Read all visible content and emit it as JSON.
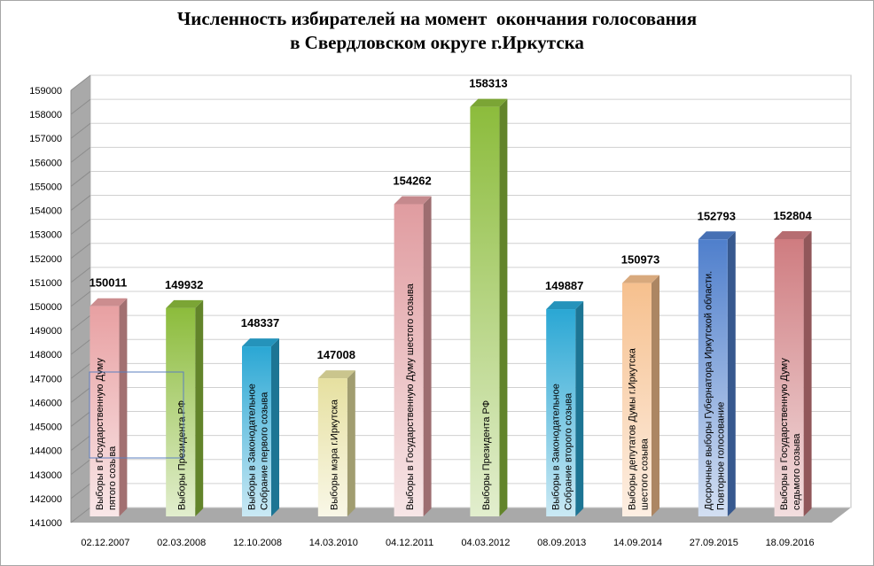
{
  "title_line1": "Численность избирателей на момент  окончания голосования",
  "title_line2": "в Свердловском округе г.Иркутска",
  "chart_data": {
    "type": "bar",
    "title": "Численность избирателей на момент  окончания голосования в Свердловском округе г.Иркутска",
    "xlabel": "",
    "ylabel": "",
    "ylim": [
      141000,
      159000
    ],
    "ytick_step": 1000,
    "grid": true,
    "categories": [
      "02.12.2007",
      "02.03.2008",
      "12.10.2008",
      "14.03.2010",
      "04.12.2011",
      "04.03.2012",
      "08.09.2013",
      "14.09.2014",
      "27.09.2015",
      "18.09.2016"
    ],
    "values": [
      150011,
      149932,
      148337,
      147008,
      154262,
      158313,
      149887,
      150973,
      152793,
      152804
    ],
    "bar_labels": [
      [
        "Выборы в Государственную Думу",
        "пятого созыва"
      ],
      [
        "Выборы Президента РФ"
      ],
      [
        "Выборы в Законодательное",
        "Собрание первого созыва"
      ],
      [
        "Выборы мэра г.Иркутска"
      ],
      [
        "Выборы в Государственную Думу шестого созыва"
      ],
      [
        "Выборы  Президента РФ"
      ],
      [
        "Выборы в Законодательное",
        "Собрание второго созыва"
      ],
      [
        "Выборы депутатов Думы г.Иркутска",
        "шестого созыва"
      ],
      [
        "Досрочные выборы  Губернатора  Иркутской  области.",
        "Повторное  голосование"
      ],
      [
        "Выборы в Государственную Думу",
        "седьмого созыва"
      ]
    ],
    "bar_colors": [
      "#e8a0a2",
      "#8cbc3c",
      "#2aa7d4",
      "#e6e0a0",
      "#e09ca0",
      "#8cbc3c",
      "#2aa7d4",
      "#f6c08e",
      "#4f7fcc",
      "#cf7c80"
    ]
  }
}
